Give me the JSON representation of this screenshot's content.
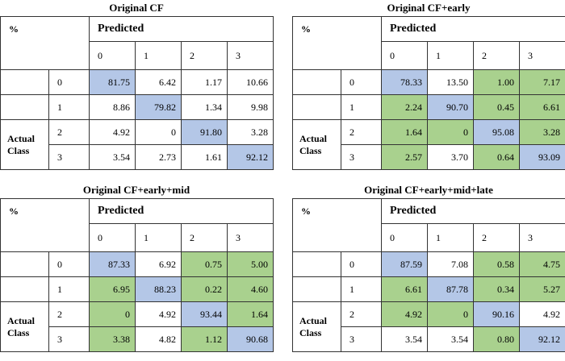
{
  "common": {
    "percent_label": "%",
    "predicted_label": "Predicted",
    "actual_class_label": "Actual Class",
    "classes": [
      "0",
      "1",
      "2",
      "3"
    ]
  },
  "panels": [
    {
      "title": "Original CF",
      "rows": [
        [
          "81.75",
          "6.42",
          "1.17",
          "10.66"
        ],
        [
          "8.86",
          "79.82",
          "1.34",
          "9.98"
        ],
        [
          "4.92",
          "0",
          "91.80",
          "3.28"
        ],
        [
          "3.54",
          "2.73",
          "1.61",
          "92.12"
        ]
      ],
      "highlight": [
        [
          "blue",
          "",
          "",
          ""
        ],
        [
          "",
          "blue",
          "",
          ""
        ],
        [
          "",
          "",
          "blue",
          ""
        ],
        [
          "",
          "",
          "",
          "blue"
        ]
      ]
    },
    {
      "title": "Original CF+early",
      "rows": [
        [
          "78.33",
          "13.50",
          "1.00",
          "7.17"
        ],
        [
          "2.24",
          "90.70",
          "0.45",
          "6.61"
        ],
        [
          "1.64",
          "0",
          "95.08",
          "3.28"
        ],
        [
          "2.57",
          "3.70",
          "0.64",
          "93.09"
        ]
      ],
      "highlight": [
        [
          "blue",
          "",
          "green",
          "green"
        ],
        [
          "green",
          "blue",
          "green",
          "green"
        ],
        [
          "green",
          "green",
          "blue",
          "green"
        ],
        [
          "green",
          "",
          "green",
          "blue"
        ]
      ]
    },
    {
      "title": "Original CF+early+mid",
      "rows": [
        [
          "87.33",
          "6.92",
          "0.75",
          "5.00"
        ],
        [
          "6.95",
          "88.23",
          "0.22",
          "4.60"
        ],
        [
          "0",
          "4.92",
          "93.44",
          "1.64"
        ],
        [
          "3.38",
          "4.82",
          "1.12",
          "90.68"
        ]
      ],
      "highlight": [
        [
          "blue",
          "",
          "green",
          "green"
        ],
        [
          "green",
          "blue",
          "green",
          "green"
        ],
        [
          "green",
          "",
          "blue",
          "green"
        ],
        [
          "green",
          "",
          "green",
          "blue"
        ]
      ]
    },
    {
      "title": "Original CF+early+mid+late",
      "rows": [
        [
          "87.59",
          "7.08",
          "0.58",
          "4.75"
        ],
        [
          "6.61",
          "87.78",
          "0.34",
          "5.27"
        ],
        [
          "4.92",
          "0",
          "90.16",
          "4.92"
        ],
        [
          "3.54",
          "3.54",
          "0.80",
          "92.12"
        ]
      ],
      "highlight": [
        [
          "blue",
          "",
          "green",
          "green"
        ],
        [
          "green",
          "blue",
          "green",
          "green"
        ],
        [
          "green",
          "green",
          "blue",
          ""
        ],
        [
          "",
          "",
          "green",
          "blue"
        ]
      ]
    }
  ],
  "colors": {
    "diagonal": "#b4c7e7",
    "improved": "#a9d18e"
  }
}
